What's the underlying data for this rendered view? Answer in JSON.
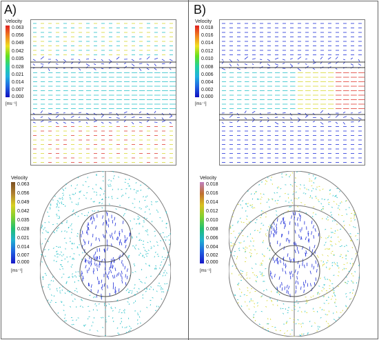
{
  "panels": [
    {
      "label": "A)",
      "top_legend": {
        "title": "Velocity",
        "ticks": [
          "0.063",
          "0.056",
          "0.049",
          "0.042",
          "0.035",
          "0.028",
          "0.021",
          "0.014",
          "0.007",
          "0.000"
        ],
        "unit": "[ms⁻¹]"
      },
      "bottom_legend": {
        "title": "Velocity",
        "ticks": [
          "0.063",
          "0.056",
          "0.049",
          "0.042",
          "0.035",
          "0.028",
          "0.021",
          "0.014",
          "0.007",
          "0.000"
        ],
        "unit": "[ms⁻¹]"
      }
    },
    {
      "label": "B)",
      "top_legend": {
        "title": "Velocity",
        "ticks": [
          "0.018",
          "0.016",
          "0.014",
          "0.012",
          "0.010",
          "0.008",
          "0.006",
          "0.004",
          "0.002",
          "0.000"
        ],
        "unit": "[ms⁻¹]"
      },
      "bottom_legend": {
        "title": "Velocity",
        "ticks": [
          "0.018",
          "0.016",
          "0.014",
          "0.012",
          "0.010",
          "0.008",
          "0.006",
          "0.004",
          "0.002",
          "0.000"
        ],
        "unit": "[ms⁻¹]"
      }
    }
  ],
  "colors": {
    "low": "#1f2fd8",
    "mid": "#20c8c8",
    "high": "#d8e020",
    "max": "#e23030",
    "frame": "#777777"
  }
}
